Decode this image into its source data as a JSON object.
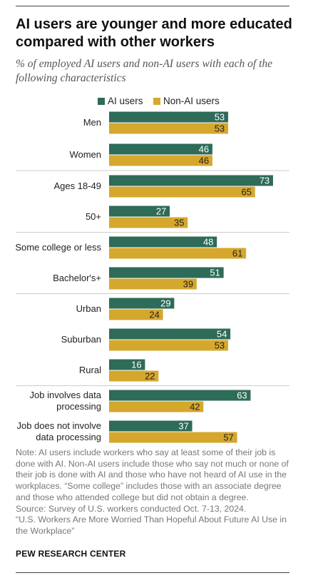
{
  "header": {
    "title": "AI users are younger and more educated compared with other workers",
    "subtitle": "% of employed AI users and non-AI users with each of the following characteristics"
  },
  "legend": {
    "ai_label": "AI users",
    "non_ai_label": "Non-AI users"
  },
  "colors": {
    "ai": "#2e6b58",
    "non_ai": "#d5a72c",
    "separator": "#cccccc"
  },
  "chart_data": {
    "type": "bar",
    "orientation": "horizontal",
    "categories": [
      [
        "Men"
      ],
      [
        "Women"
      ],
      [
        "Ages 18-49"
      ],
      [
        "50+"
      ],
      [
        "Some college or less"
      ],
      [
        "Bachelor's+"
      ],
      [
        "Urban"
      ],
      [
        "Suburban"
      ],
      [
        "Rural"
      ],
      [
        "Job involves data",
        "processing"
      ],
      [
        "Job does not involve",
        "data processing"
      ]
    ],
    "series": [
      {
        "name": "AI users",
        "values": [
          53,
          46,
          73,
          27,
          48,
          51,
          29,
          54,
          16,
          63,
          37
        ]
      },
      {
        "name": "Non-AI users",
        "values": [
          53,
          46,
          65,
          35,
          61,
          39,
          24,
          53,
          22,
          42,
          57
        ]
      }
    ],
    "groups": [
      [
        0,
        1
      ],
      [
        2,
        3
      ],
      [
        4,
        5
      ],
      [
        6,
        7,
        8
      ],
      [
        9,
        10
      ]
    ],
    "data_labels": true,
    "grid": false
  },
  "footer": {
    "note": "Note: AI users include workers who say at least some of their job is done with AI. Non-AI users include those who say not much or none of their job is done with AI and those who have not heard of AI use in the workplaces. “Some college” includes those with an associate degree and those who attended college but did not obtain a degree.",
    "source": "Source: Survey of U.S. workers conducted Oct. 7-13, 2024.",
    "report": "“U.S. Workers Are More Worried Than Hopeful About Future AI Use in the Workplace”",
    "brand": "PEW RESEARCH CENTER"
  }
}
